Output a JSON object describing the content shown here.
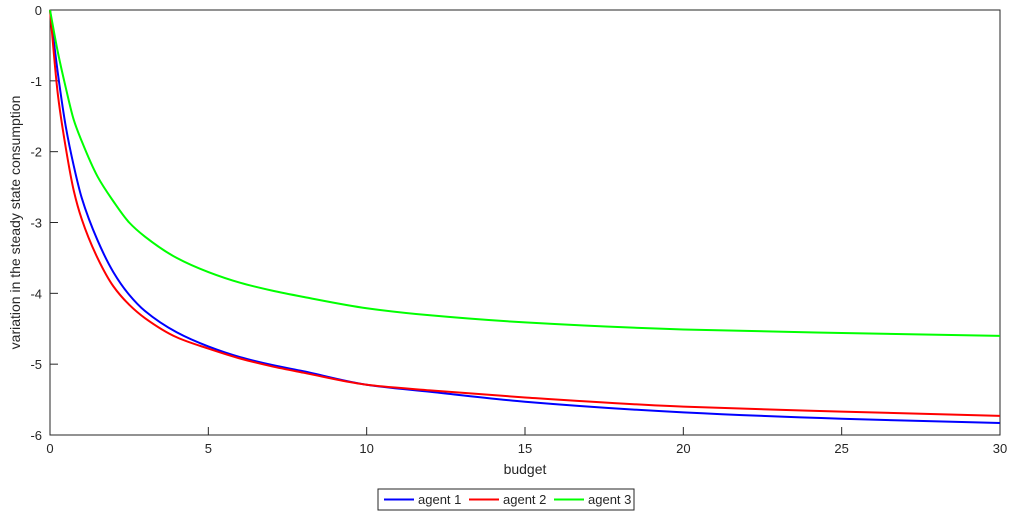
{
  "chart_data": {
    "type": "line",
    "title": "",
    "xlabel": "budget",
    "ylabel": "variation in the steady state consumption",
    "xlim": [
      0,
      30
    ],
    "ylim": [
      -6,
      0
    ],
    "xticks": [
      0,
      5,
      10,
      15,
      20,
      25,
      30
    ],
    "yticks": [
      0,
      -1,
      -2,
      -3,
      -4,
      -5,
      -6
    ],
    "grid": false,
    "legend": {
      "position": "bottom-center",
      "orientation": "horizontal"
    },
    "x": [
      0,
      0.25,
      0.5,
      0.75,
      1,
      1.5,
      2,
      2.5,
      3,
      4,
      5,
      6,
      7,
      8,
      10,
      12,
      15,
      20,
      25,
      30
    ],
    "series": [
      {
        "name": "agent 1",
        "color": "#0000ff",
        "values": [
          0,
          -0.9,
          -1.65,
          -2.2,
          -2.65,
          -3.25,
          -3.7,
          -4.02,
          -4.25,
          -4.55,
          -4.75,
          -4.9,
          -5.01,
          -5.1,
          -5.29,
          -5.39,
          -5.53,
          -5.68,
          -5.77,
          -5.83
        ]
      },
      {
        "name": "agent 2",
        "color": "#ff0000",
        "values": [
          0,
          -1.2,
          -1.95,
          -2.55,
          -2.95,
          -3.5,
          -3.9,
          -4.16,
          -4.35,
          -4.62,
          -4.78,
          -4.92,
          -5.03,
          -5.12,
          -5.29,
          -5.37,
          -5.47,
          -5.6,
          -5.67,
          -5.73
        ]
      },
      {
        "name": "agent 3",
        "color": "#00ff00",
        "values": [
          0,
          -0.6,
          -1.1,
          -1.55,
          -1.85,
          -2.35,
          -2.7,
          -3.0,
          -3.2,
          -3.5,
          -3.7,
          -3.85,
          -3.96,
          -4.05,
          -4.21,
          -4.31,
          -4.41,
          -4.51,
          -4.56,
          -4.6
        ]
      }
    ]
  }
}
